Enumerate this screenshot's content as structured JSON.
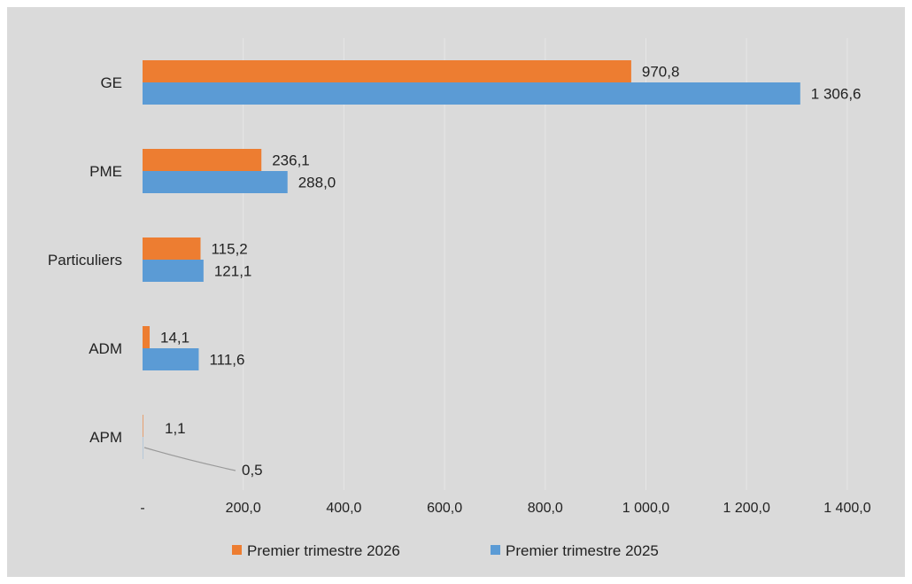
{
  "chart_data": {
    "type": "bar",
    "orientation": "horizontal",
    "categories": [
      "GE",
      "PME",
      "Particuliers",
      "ADM",
      "APM"
    ],
    "series": [
      {
        "name": "Premier trimestre 2026",
        "color": "#ed7d31",
        "values": [
          970.8,
          236.1,
          115.2,
          14.1,
          1.1
        ],
        "labels": [
          "970,8",
          "236,1",
          "115,2",
          "14,1",
          "1,1"
        ]
      },
      {
        "name": "Premier trimestre 2025",
        "color": "#5b9bd5",
        "values": [
          1306.6,
          288.0,
          121.1,
          111.6,
          0.5
        ],
        "labels": [
          "1 306,6",
          "288,0",
          "121,1",
          "111,6",
          "0,5"
        ]
      }
    ],
    "x_ticks": [
      0,
      200,
      400,
      600,
      800,
      1000,
      1200,
      1400
    ],
    "x_tick_labels": [
      "-",
      "200,0",
      "400,0",
      "600,0",
      "800,0",
      "1 000,0",
      "1 200,0",
      "1 400,0"
    ],
    "xlim": [
      0,
      1500
    ],
    "grid": "vertical",
    "legend_position": "bottom",
    "title": "",
    "xlabel": "",
    "ylabel": ""
  }
}
